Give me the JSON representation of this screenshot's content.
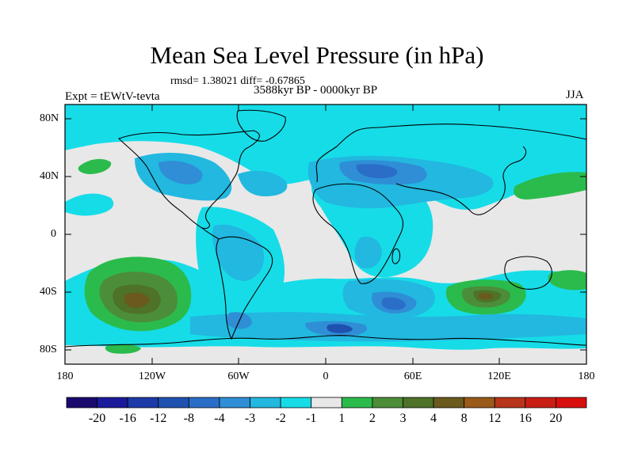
{
  "title": "Mean Sea Level Pressure (in hPa)",
  "stats": "rmsd= 1.38021 diff= -0.67865",
  "period": "3588kyr BP - 0000kyr BP",
  "experiment": "Expt = tEWtV-tevta",
  "season": "JJA",
  "latitude_labels": [
    "80N",
    "40N",
    "0",
    "40S",
    "80S"
  ],
  "longitude_labels": [
    "180",
    "120W",
    "60W",
    "0",
    "60E",
    "120E",
    "180"
  ],
  "colorbar": {
    "tick_labels": [
      "-20",
      "-16",
      "-12",
      "-8",
      "-4",
      "-3",
      "-2",
      "-1",
      "1",
      "2",
      "3",
      "4",
      "8",
      "12",
      "16",
      "20"
    ],
    "colors": [
      "#1a0a6e",
      "#1a1a9a",
      "#1c3aa8",
      "#1f52b0",
      "#2a6ec8",
      "#2f8ed6",
      "#22b8e0",
      "#16dce8",
      "#e8e8e8",
      "#2bbb4c",
      "#4c8d3a",
      "#4e7228",
      "#6a5a1e",
      "#9a5a1a",
      "#b8341a",
      "#c81e14",
      "#d80e0e"
    ]
  },
  "palette": {
    "neutral": "#e8e8e8",
    "cyan": "#16dce8",
    "blue_light": "#22b8e0",
    "blue_mid": "#2f8ed6",
    "blue_dark": "#2a6ec8",
    "blue_deep": "#1f52b0",
    "green": "#2bbb4c",
    "green_dark": "#4c8d3a",
    "olive": "#4e7228",
    "brown": "#6a5a1e"
  }
}
